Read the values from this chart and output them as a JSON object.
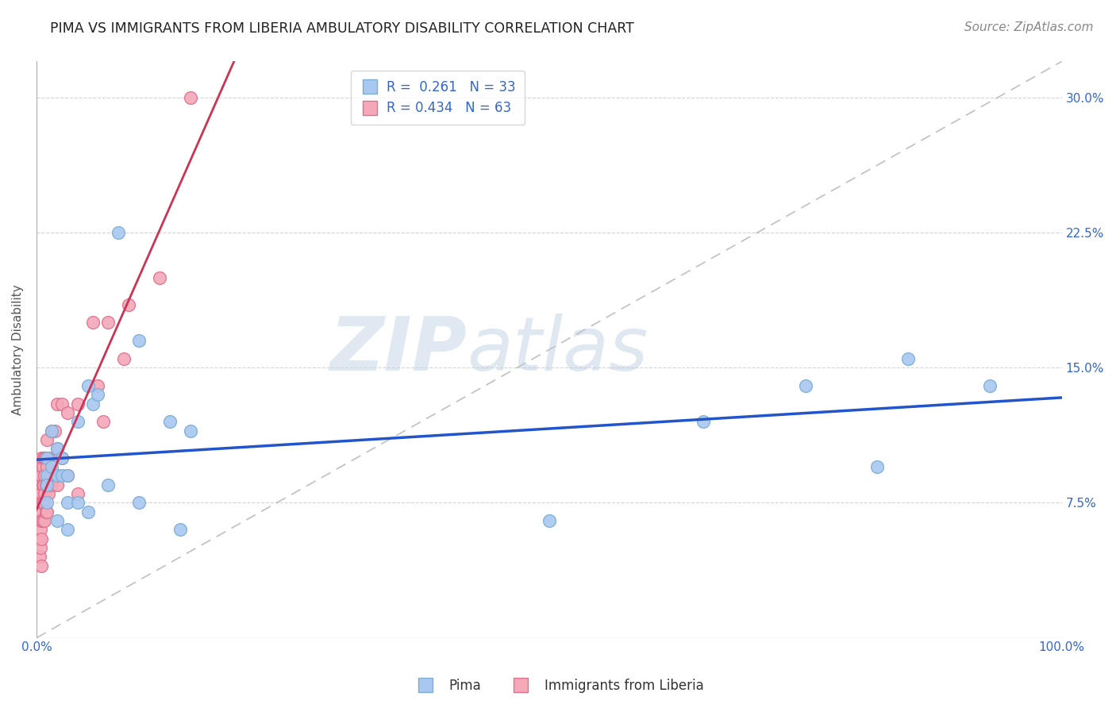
{
  "title": "PIMA VS IMMIGRANTS FROM LIBERIA AMBULATORY DISABILITY CORRELATION CHART",
  "source": "Source: ZipAtlas.com",
  "ylabel": "Ambulatory Disability",
  "xlim": [
    0,
    1.0
  ],
  "ylim": [
    0,
    0.32
  ],
  "yticks": [
    0.075,
    0.15,
    0.225,
    0.3
  ],
  "ytick_labels": [
    "7.5%",
    "15.0%",
    "22.5%",
    "30.0%"
  ],
  "background_color": "#ffffff",
  "grid_color": "#c8c8c8",
  "pima_color": "#a8c8f0",
  "pima_edge_color": "#7aaed4",
  "liberia_color": "#f4a8b8",
  "liberia_edge_color": "#e07090",
  "pima_R": "0.261",
  "pima_N": "33",
  "liberia_R": "0.434",
  "liberia_N": "63",
  "pima_line_color": "#2255cc",
  "liberia_line_color": "#cc3355",
  "pima_points_x": [
    0.01,
    0.01,
    0.01,
    0.01,
    0.015,
    0.015,
    0.02,
    0.02,
    0.02,
    0.025,
    0.025,
    0.03,
    0.03,
    0.03,
    0.04,
    0.04,
    0.05,
    0.05,
    0.055,
    0.06,
    0.07,
    0.08,
    0.1,
    0.1,
    0.13,
    0.14,
    0.15,
    0.5,
    0.65,
    0.75,
    0.82,
    0.85,
    0.93
  ],
  "pima_points_y": [
    0.1,
    0.09,
    0.085,
    0.075,
    0.115,
    0.095,
    0.105,
    0.09,
    0.065,
    0.1,
    0.09,
    0.09,
    0.075,
    0.06,
    0.12,
    0.075,
    0.14,
    0.07,
    0.13,
    0.135,
    0.085,
    0.225,
    0.165,
    0.075,
    0.12,
    0.06,
    0.115,
    0.065,
    0.12,
    0.14,
    0.095,
    0.155,
    0.14
  ],
  "liberia_points_x": [
    0.002,
    0.002,
    0.003,
    0.003,
    0.003,
    0.003,
    0.003,
    0.003,
    0.003,
    0.004,
    0.004,
    0.004,
    0.004,
    0.004,
    0.004,
    0.005,
    0.005,
    0.005,
    0.005,
    0.005,
    0.005,
    0.005,
    0.006,
    0.006,
    0.006,
    0.006,
    0.007,
    0.007,
    0.007,
    0.008,
    0.008,
    0.008,
    0.008,
    0.009,
    0.009,
    0.009,
    0.01,
    0.01,
    0.01,
    0.012,
    0.012,
    0.013,
    0.015,
    0.015,
    0.018,
    0.018,
    0.02,
    0.02,
    0.02,
    0.025,
    0.025,
    0.03,
    0.03,
    0.04,
    0.04,
    0.055,
    0.06,
    0.065,
    0.07,
    0.085,
    0.09,
    0.12,
    0.15
  ],
  "liberia_points_y": [
    0.075,
    0.065,
    0.09,
    0.085,
    0.08,
    0.075,
    0.065,
    0.055,
    0.045,
    0.095,
    0.085,
    0.075,
    0.07,
    0.06,
    0.05,
    0.1,
    0.09,
    0.08,
    0.075,
    0.065,
    0.055,
    0.04,
    0.095,
    0.085,
    0.075,
    0.065,
    0.1,
    0.085,
    0.075,
    0.1,
    0.09,
    0.08,
    0.065,
    0.1,
    0.085,
    0.07,
    0.11,
    0.095,
    0.07,
    0.1,
    0.08,
    0.09,
    0.115,
    0.085,
    0.115,
    0.09,
    0.13,
    0.105,
    0.085,
    0.13,
    0.1,
    0.125,
    0.09,
    0.13,
    0.08,
    0.175,
    0.14,
    0.12,
    0.175,
    0.155,
    0.185,
    0.2,
    0.3
  ],
  "title_fontsize": 12.5,
  "axis_label_fontsize": 11,
  "tick_fontsize": 11,
  "legend_fontsize": 12,
  "source_fontsize": 11
}
